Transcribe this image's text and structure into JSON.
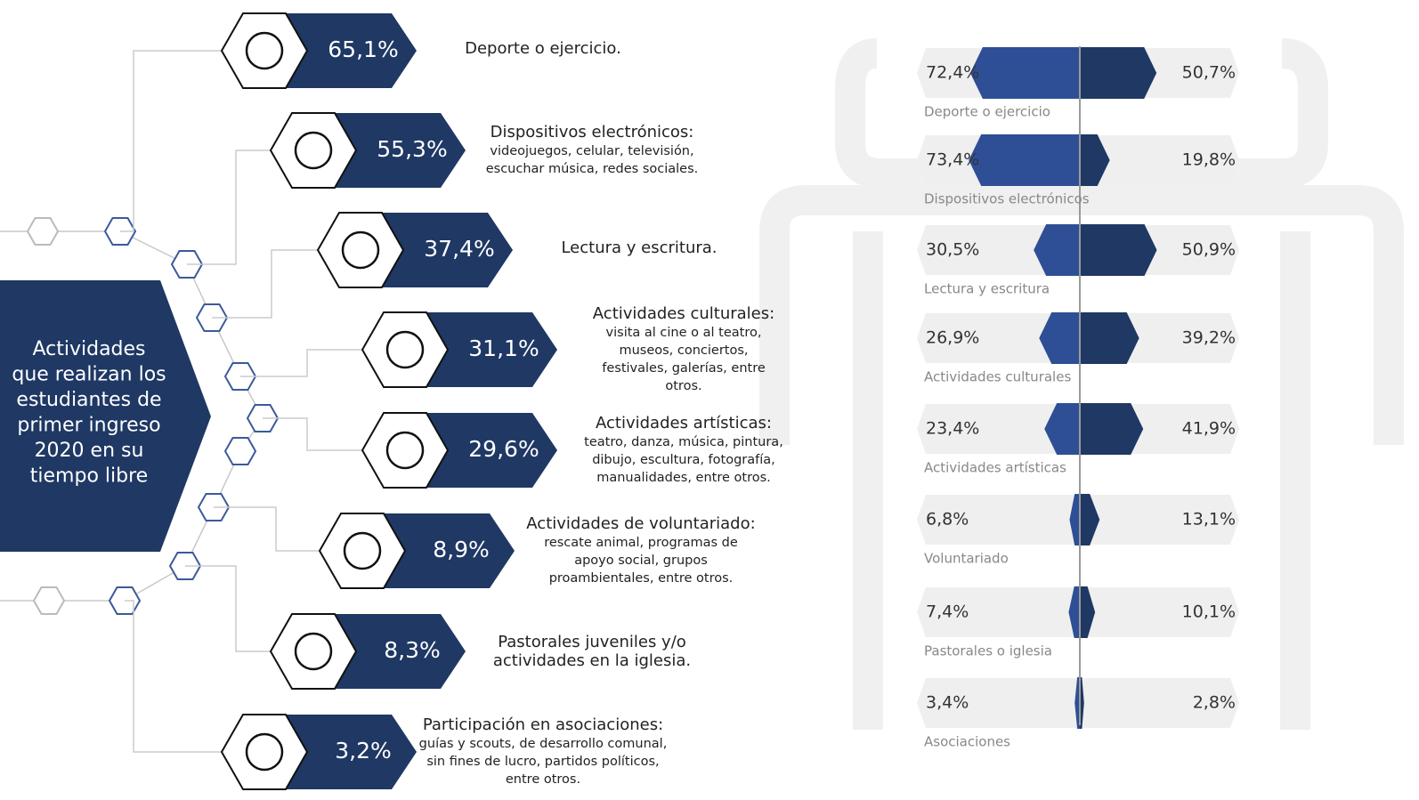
{
  "chart_data": [
    {
      "type": "hexlist",
      "title": [
        "Actividades",
        "que realizan los",
        "estudiantes de",
        "primer ingreso",
        "2020 en su",
        "tiempo libre"
      ],
      "categories": [
        "Deporte o ejercicio.",
        "Dispositivos electrónicos:",
        "Lectura y escritura.",
        "Actividades culturales:",
        "Actividades artísticas:",
        "Actividades de voluntariado:",
        "Pastorales juveniles y/o",
        "Participación en asociaciones:"
      ],
      "descriptions": [
        [],
        [
          "videojuegos, celular, televisión,",
          "escuchar música, redes sociales."
        ],
        [],
        [
          "visita al cine o al teatro,",
          "museos, conciertos,",
          "festivales, galerías, entre",
          "otros."
        ],
        [
          "teatro, danza, música, pintura,",
          "dibujo, escultura, fotografía,",
          "manualidades, entre otros."
        ],
        [
          "rescate animal, programas de",
          "apoyo social, grupos",
          "proambientales, entre otros."
        ],
        [
          "actividades en la iglesia."
        ],
        [
          "guías y scouts, de desarrollo comunal,",
          "sin fines de lucro, partidos políticos,",
          "entre otros."
        ]
      ],
      "values": [
        65.1,
        55.3,
        37.4,
        31.1,
        29.6,
        8.9,
        8.3,
        3.2
      ],
      "value_labels": [
        "65,1%",
        "55,3%",
        "37,4%",
        "31,1%",
        "29,6%",
        "8,9%",
        "8,3%",
        "3,2%"
      ],
      "color": "#1f3864"
    },
    {
      "type": "butterfly",
      "categories": [
        "Deporte o ejercicio",
        "Dispositivos electrónicos",
        "Lectura y escritura",
        "Actividades culturales",
        "Actividades artísticas",
        "Voluntariado",
        "Pastorales o iglesia",
        "Asociaciones"
      ],
      "series": [
        {
          "color": "#2e4f96",
          "values": [
            72.4,
            73.4,
            30.5,
            26.9,
            23.4,
            6.8,
            7.4,
            3.4
          ],
          "value_labels": [
            "72,4%",
            "73,4%",
            "30,5%",
            "26,9%",
            "23,4%",
            "6,8%",
            "7,4%",
            "3,4%"
          ]
        },
        {
          "color": "#1f3864",
          "values": [
            50.7,
            19.8,
            50.9,
            39.2,
            41.9,
            13.1,
            10.1,
            2.8
          ],
          "value_labels": [
            "50,7%",
            "19,8%",
            "50,9%",
            "39,2%",
            "41,9%",
            "13,1%",
            "10,1%",
            "2,8%"
          ]
        }
      ],
      "xlim": [
        0,
        100
      ]
    }
  ]
}
